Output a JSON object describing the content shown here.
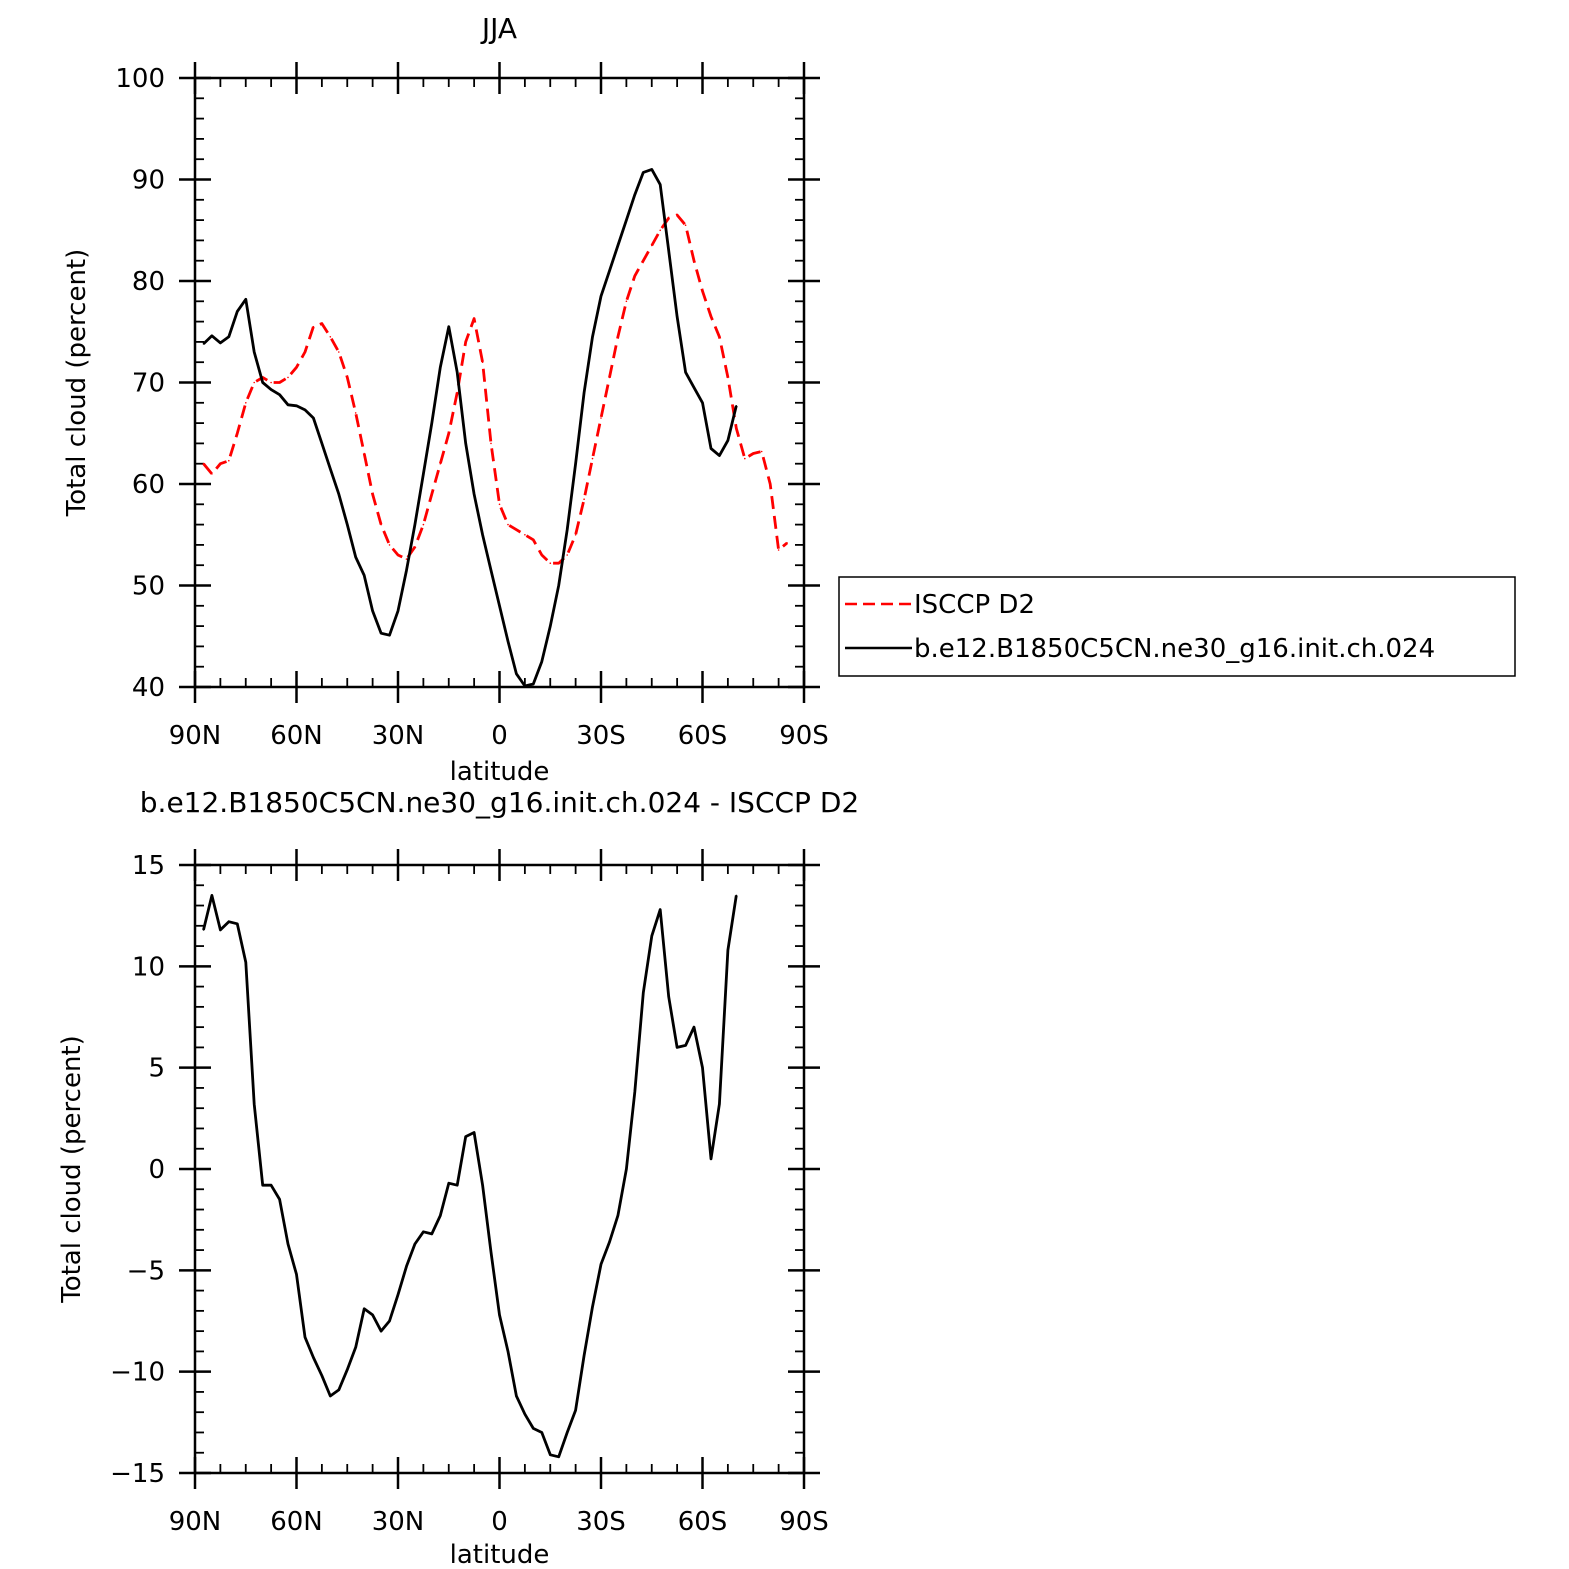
{
  "chart_data": [
    {
      "type": "line",
      "title": "JJA",
      "xlabel": "latitude",
      "ylabel": "Total cloud (percent)",
      "xlim": [
        90,
        -90
      ],
      "ylim": [
        40,
        100
      ],
      "xticks": [
        {
          "value": 90,
          "label": "90N"
        },
        {
          "value": 60,
          "label": "60N"
        },
        {
          "value": 30,
          "label": "30N"
        },
        {
          "value": 0,
          "label": "0"
        },
        {
          "value": -30,
          "label": "30S"
        },
        {
          "value": -60,
          "label": "60S"
        },
        {
          "value": -90,
          "label": "90S"
        }
      ],
      "yticks": [
        "40",
        "50",
        "60",
        "70",
        "80",
        "90",
        "100"
      ],
      "legend": {
        "position": "right",
        "entries": [
          "ISCCP D2",
          "b.e12.B1850C5CN.ne30_g16.init.ch.024"
        ]
      },
      "series": [
        {
          "name": "ISCCP D2",
          "color": "#ff0000",
          "dash": "dashed",
          "points": [
            [
              87.5,
              62
            ],
            [
              85,
              61
            ],
            [
              82.5,
              62
            ],
            [
              80,
              62.3
            ],
            [
              77.5,
              65
            ],
            [
              75,
              68
            ],
            [
              72.5,
              70
            ],
            [
              70,
              70.5
            ],
            [
              67.5,
              70
            ],
            [
              65,
              70
            ],
            [
              62.5,
              70.5
            ],
            [
              60,
              71.5
            ],
            [
              57.5,
              73
            ],
            [
              55,
              75.5
            ],
            [
              52.5,
              75.8
            ],
            [
              50,
              74.5
            ],
            [
              47.5,
              73
            ],
            [
              45,
              70.5
            ],
            [
              42.5,
              67
            ],
            [
              40,
              63
            ],
            [
              37.5,
              59
            ],
            [
              35,
              56
            ],
            [
              32.5,
              54
            ],
            [
              30,
              53
            ],
            [
              27.5,
              52.6
            ],
            [
              25,
              53.8
            ],
            [
              22.5,
              56
            ],
            [
              20,
              59
            ],
            [
              17.5,
              62
            ],
            [
              15,
              65
            ],
            [
              12.5,
              69
            ],
            [
              10,
              74
            ],
            [
              7.5,
              76.3
            ],
            [
              5,
              72
            ],
            [
              2.5,
              64
            ],
            [
              0,
              58
            ],
            [
              -2.5,
              56
            ],
            [
              -5,
              55.5
            ],
            [
              -7.5,
              55
            ],
            [
              -10,
              54.5
            ],
            [
              -12.5,
              53
            ],
            [
              -15,
              52.2
            ],
            [
              -17.5,
              52.2
            ],
            [
              -20,
              53
            ],
            [
              -22.5,
              55
            ],
            [
              -25,
              58.5
            ],
            [
              -27.5,
              62.5
            ],
            [
              -30,
              66.5
            ],
            [
              -32.5,
              70.5
            ],
            [
              -35,
              74.5
            ],
            [
              -37.5,
              78
            ],
            [
              -40,
              80.5
            ],
            [
              -42.5,
              82
            ],
            [
              -45,
              83.5
            ],
            [
              -47.5,
              85
            ],
            [
              -50,
              86.2
            ],
            [
              -52.5,
              86.5
            ],
            [
              -55,
              85.5
            ],
            [
              -57.5,
              82
            ],
            [
              -60,
              79
            ],
            [
              -62.5,
              76.5
            ],
            [
              -65,
              74.5
            ],
            [
              -67.5,
              70.5
            ],
            [
              -70,
              65.5
            ],
            [
              -72.5,
              62.5
            ],
            [
              -75,
              63
            ],
            [
              -77.5,
              63.2
            ],
            [
              -80,
              60
            ],
            [
              -82.5,
              53.5
            ],
            [
              -85,
              54.2
            ]
          ]
        },
        {
          "name": "b.e12.B1850C5CN.ne30_g16.init.ch.024",
          "color": "#000000",
          "dash": "solid",
          "points": [
            [
              87.5,
              73.8
            ],
            [
              85,
              74.6
            ],
            [
              82.5,
              73.9
            ],
            [
              80,
              74.5
            ],
            [
              77.5,
              77
            ],
            [
              75,
              78.2
            ],
            [
              72.5,
              73
            ],
            [
              70,
              70
            ],
            [
              67.5,
              69.3
            ],
            [
              65,
              68.8
            ],
            [
              62.5,
              67.8
            ],
            [
              60,
              67.7
            ],
            [
              57.5,
              67.3
            ],
            [
              55,
              66.5
            ],
            [
              52.5,
              64
            ],
            [
              50,
              61.5
            ],
            [
              47.5,
              59
            ],
            [
              45,
              56
            ],
            [
              42.5,
              52.8
            ],
            [
              40,
              51
            ],
            [
              37.5,
              47.5
            ],
            [
              35,
              45.3
            ],
            [
              32.5,
              45.1
            ],
            [
              30,
              47.5
            ],
            [
              27.5,
              51.5
            ],
            [
              25,
              56
            ],
            [
              22.5,
              61
            ],
            [
              20,
              66
            ],
            [
              17.5,
              71.5
            ],
            [
              15,
              75.5
            ],
            [
              12.5,
              71
            ],
            [
              10,
              64
            ],
            [
              7.5,
              59
            ],
            [
              5,
              55
            ],
            [
              2.5,
              51.5
            ],
            [
              0,
              48
            ],
            [
              -2.5,
              44.5
            ],
            [
              -5,
              41.3
            ],
            [
              -7.5,
              40.1
            ],
            [
              -10,
              40.3
            ],
            [
              -12.5,
              42.5
            ],
            [
              -15,
              46
            ],
            [
              -17.5,
              50
            ],
            [
              -20,
              55.5
            ],
            [
              -22.5,
              62
            ],
            [
              -25,
              69
            ],
            [
              -27.5,
              74.5
            ],
            [
              -30,
              78.5
            ],
            [
              -32.5,
              81
            ],
            [
              -35,
              83.5
            ],
            [
              -37.5,
              86
            ],
            [
              -40,
              88.5
            ],
            [
              -42.5,
              90.7
            ],
            [
              -45,
              91
            ],
            [
              -47.5,
              89.5
            ],
            [
              -50,
              83
            ],
            [
              -52.5,
              76.5
            ],
            [
              -55,
              71
            ],
            [
              -57.5,
              69.5
            ],
            [
              -60,
              68
            ],
            [
              -62.5,
              63.5
            ],
            [
              -65,
              62.8
            ],
            [
              -67.5,
              64.3
            ],
            [
              -70,
              67.7
            ]
          ]
        }
      ]
    },
    {
      "type": "line",
      "title": "b.e12.B1850C5CN.ne30_g16.init.ch.024 - ISCCP D2",
      "xlabel": "latitude",
      "ylabel": "Total cloud (percent)",
      "xlim": [
        90,
        -90
      ],
      "ylim": [
        -15,
        15
      ],
      "xticks": [
        {
          "value": 90,
          "label": "90N"
        },
        {
          "value": 60,
          "label": "60N"
        },
        {
          "value": 30,
          "label": "30N"
        },
        {
          "value": 0,
          "label": "0"
        },
        {
          "value": -30,
          "label": "30S"
        },
        {
          "value": -60,
          "label": "60S"
        },
        {
          "value": -90,
          "label": "90S"
        }
      ],
      "yticks": [
        "−15",
        "−10",
        "−5",
        "0",
        "5",
        "10",
        "15"
      ],
      "series": [
        {
          "color": "#000000",
          "dash": "solid",
          "points": [
            [
              87.5,
              11.8
            ],
            [
              85,
              13.5
            ],
            [
              82.5,
              11.8
            ],
            [
              80,
              12.2
            ],
            [
              77.5,
              12.1
            ],
            [
              75,
              10.2
            ],
            [
              72.5,
              3.2
            ],
            [
              70,
              -0.8
            ],
            [
              67.5,
              -0.8
            ],
            [
              65,
              -1.5
            ],
            [
              62.5,
              -3.7
            ],
            [
              60,
              -5.2
            ],
            [
              57.5,
              -8.3
            ],
            [
              55,
              -9.3
            ],
            [
              52.5,
              -10.2
            ],
            [
              50,
              -11.2
            ],
            [
              47.5,
              -10.9
            ],
            [
              45,
              -9.9
            ],
            [
              42.5,
              -8.8
            ],
            [
              40,
              -6.9
            ],
            [
              37.5,
              -7.2
            ],
            [
              35,
              -8
            ],
            [
              32.5,
              -7.5
            ],
            [
              30,
              -6.2
            ],
            [
              27.5,
              -4.8
            ],
            [
              25,
              -3.7
            ],
            [
              22.5,
              -3.1
            ],
            [
              20,
              -3.2
            ],
            [
              17.5,
              -2.3
            ],
            [
              15,
              -0.7
            ],
            [
              12.5,
              -0.8
            ],
            [
              10,
              1.6
            ],
            [
              7.5,
              1.8
            ],
            [
              5,
              -0.8
            ],
            [
              2.5,
              -4.1
            ],
            [
              0,
              -7.2
            ],
            [
              -2.5,
              -9
            ],
            [
              -5,
              -11.2
            ],
            [
              -7.5,
              -12.1
            ],
            [
              -10,
              -12.8
            ],
            [
              -12.5,
              -13
            ],
            [
              -15,
              -14.1
            ],
            [
              -17.5,
              -14.2
            ],
            [
              -20,
              -13
            ],
            [
              -22.5,
              -11.9
            ],
            [
              -25,
              -9.2
            ],
            [
              -27.5,
              -6.8
            ],
            [
              -30,
              -4.7
            ],
            [
              -32.5,
              -3.6
            ],
            [
              -35,
              -2.3
            ],
            [
              -37.5,
              0
            ],
            [
              -40,
              3.8
            ],
            [
              -42.5,
              8.7
            ],
            [
              -45,
              11.5
            ],
            [
              -47.5,
              12.8
            ],
            [
              -50,
              8.5
            ],
            [
              -52.5,
              6
            ],
            [
              -55,
              6.1
            ],
            [
              -57.5,
              7
            ],
            [
              -60,
              5
            ],
            [
              -62.5,
              0.5
            ],
            [
              -65,
              3.2
            ],
            [
              -67.5,
              10.8
            ],
            [
              -70,
              13.5
            ]
          ]
        }
      ]
    }
  ]
}
